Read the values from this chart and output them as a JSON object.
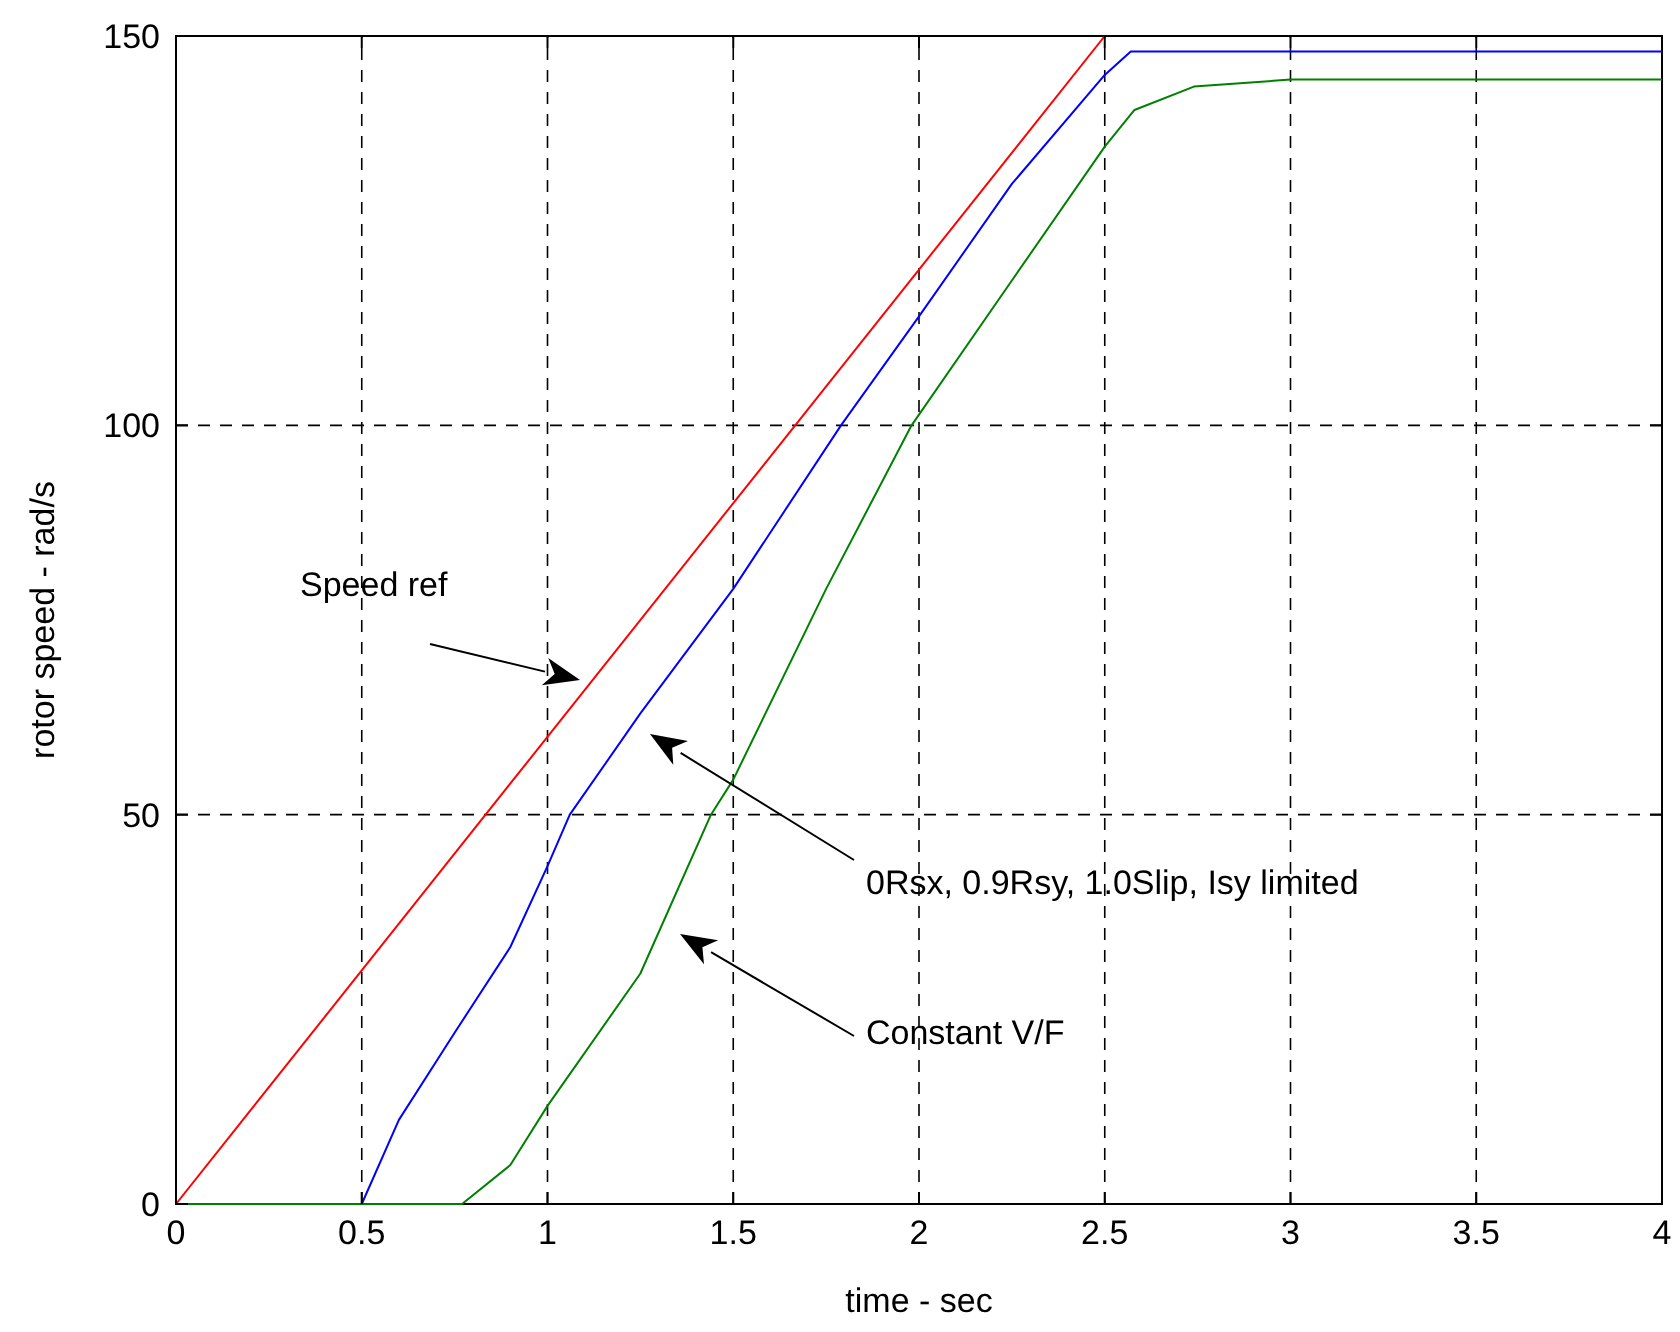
{
  "chart_data": {
    "type": "line",
    "xlabel": "time - sec",
    "ylabel": "rotor speed - rad/s",
    "xlim": [
      0,
      4
    ],
    "ylim": [
      0,
      150
    ],
    "xticks": [
      0,
      0.5,
      1,
      1.5,
      2,
      2.5,
      3,
      3.5,
      4
    ],
    "yticks": [
      0,
      50,
      100,
      150
    ],
    "grid": true,
    "line_style": "solid",
    "marker": "none",
    "series": [
      {
        "color": "#ff0000",
        "x": [
          0,
          2.5
        ],
        "values": [
          0,
          150
        ]
      },
      {
        "color": "#0000ff",
        "x": [
          0,
          0.5,
          0.6,
          0.75,
          0.9,
          1.0,
          1.06,
          1.25,
          1.5,
          1.79,
          2.0,
          2.25,
          2.5,
          2.57,
          4
        ],
        "values": [
          0,
          0,
          10.8,
          22,
          33,
          43.4,
          50,
          63,
          79,
          100,
          114,
          131,
          145,
          148,
          148
        ]
      },
      {
        "color": "#008000",
        "x": [
          0,
          0.77,
          0.9,
          1.0,
          1.25,
          1.44,
          1.5,
          1.75,
          1.98,
          2.25,
          2.5,
          2.58,
          2.74,
          3.0,
          4
        ],
        "values": [
          0,
          0,
          5,
          12.6,
          29.6,
          50,
          54.5,
          79,
          100,
          118.6,
          135.8,
          140.5,
          143.5,
          144.4,
          144.4
        ]
      }
    ],
    "annotations": [
      "Speed ref",
      "0Rsx, 0.9Rsy, 1.0Slip, Isy limited",
      "Constant V/F"
    ]
  }
}
